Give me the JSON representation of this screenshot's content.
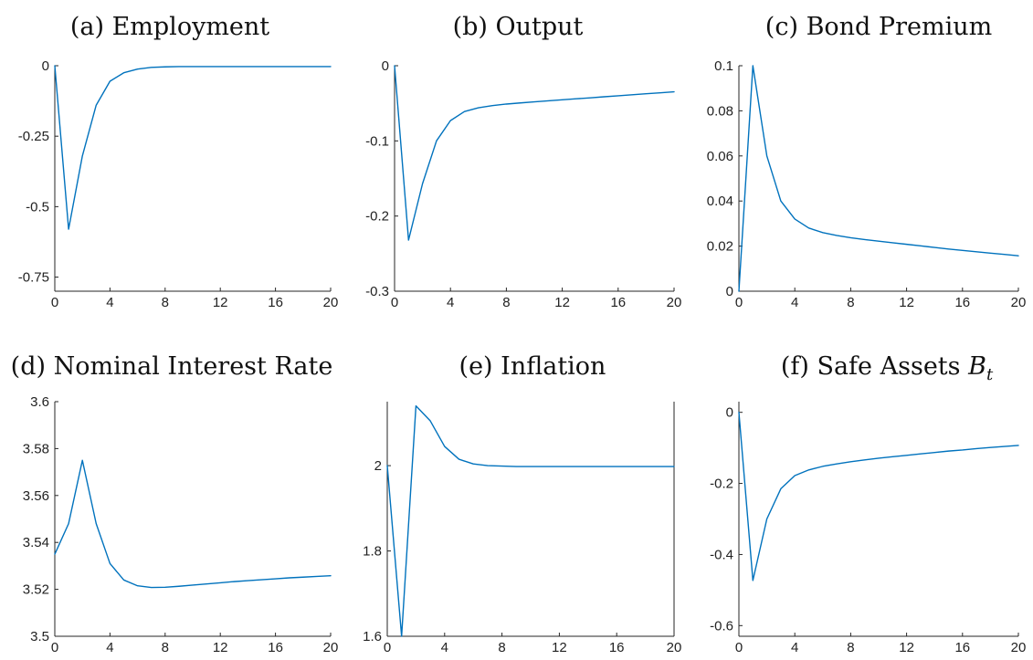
{
  "chart_data": [
    {
      "id": "employment",
      "type": "line",
      "title": "(a) Employment",
      "title_sub": "",
      "xlim": [
        0,
        20
      ],
      "ylim": [
        -0.8,
        0
      ],
      "x_ticks": [
        0,
        4,
        8,
        12,
        16,
        20
      ],
      "x_tick_labels": [
        "0",
        "4",
        "8",
        "12",
        "16",
        "20"
      ],
      "y_ticks": [
        -0.75,
        -0.5,
        -0.25,
        0
      ],
      "y_tick_labels": [
        "-0.75",
        "-0.5",
        "-0.25",
        "0"
      ],
      "box_right": false,
      "grid": false,
      "series": [
        {
          "color": "#0072BD",
          "x": [
            0,
            1,
            2,
            3,
            4,
            5,
            6,
            7,
            8,
            9,
            10,
            11,
            12,
            13,
            14,
            15,
            16,
            17,
            18,
            19,
            20
          ],
          "y": [
            0,
            -0.58,
            -0.32,
            -0.14,
            -0.055,
            -0.025,
            -0.012,
            -0.006,
            -0.004,
            -0.003,
            -0.003,
            -0.003,
            -0.003,
            -0.003,
            -0.003,
            -0.003,
            -0.003,
            -0.003,
            -0.003,
            -0.003,
            -0.003
          ]
        }
      ]
    },
    {
      "id": "output",
      "type": "line",
      "title": "(b) Output",
      "title_sub": "",
      "xlim": [
        0,
        20
      ],
      "ylim": [
        -0.3,
        0
      ],
      "x_ticks": [
        0,
        4,
        8,
        12,
        16,
        20
      ],
      "x_tick_labels": [
        "0",
        "4",
        "8",
        "12",
        "16",
        "20"
      ],
      "y_ticks": [
        -0.3,
        -0.2,
        -0.1,
        0
      ],
      "y_tick_labels": [
        "-0.3",
        "-0.2",
        "-0.1",
        "0"
      ],
      "box_right": false,
      "grid": false,
      "series": [
        {
          "color": "#0072BD",
          "x": [
            0,
            1,
            2,
            3,
            4,
            5,
            6,
            7,
            8,
            9,
            10,
            11,
            12,
            13,
            14,
            15,
            16,
            17,
            18,
            19,
            20
          ],
          "y": [
            0,
            -0.232,
            -0.157,
            -0.1,
            -0.073,
            -0.061,
            -0.056,
            -0.053,
            -0.051,
            -0.0495,
            -0.048,
            -0.0467,
            -0.0453,
            -0.044,
            -0.0427,
            -0.0413,
            -0.04,
            -0.0387,
            -0.0373,
            -0.036,
            -0.0347
          ]
        }
      ]
    },
    {
      "id": "bond-premium",
      "type": "line",
      "title": "(c) Bond Premium",
      "title_sub": "",
      "xlim": [
        0,
        20
      ],
      "ylim": [
        0,
        0.1
      ],
      "x_ticks": [
        0,
        4,
        8,
        12,
        16,
        20
      ],
      "x_tick_labels": [
        "0",
        "4",
        "8",
        "12",
        "16",
        "20"
      ],
      "y_ticks": [
        0,
        0.02,
        0.04,
        0.06,
        0.08,
        0.1
      ],
      "y_tick_labels": [
        "0",
        "0.02",
        "0.04",
        "0.06",
        "0.08",
        "0.1"
      ],
      "box_right": false,
      "grid": false,
      "series": [
        {
          "color": "#0072BD",
          "x": [
            0,
            1,
            2,
            3,
            4,
            5,
            6,
            7,
            8,
            9,
            10,
            11,
            12,
            13,
            14,
            15,
            16,
            17,
            18,
            19,
            20
          ],
          "y": [
            0,
            0.1,
            0.06,
            0.04,
            0.032,
            0.028,
            0.026,
            0.0247,
            0.0237,
            0.0229,
            0.0222,
            0.0215,
            0.0208,
            0.0201,
            0.0194,
            0.0187,
            0.0181,
            0.0175,
            0.0169,
            0.0163,
            0.0157
          ]
        }
      ]
    },
    {
      "id": "nominal-interest-rate",
      "type": "line",
      "title": "(d) Nominal Interest Rate",
      "title_sub": "",
      "xlim": [
        0,
        20
      ],
      "ylim": [
        3.5,
        3.6
      ],
      "x_ticks": [
        0,
        4,
        8,
        12,
        16,
        20
      ],
      "x_tick_labels": [
        "0",
        "4",
        "8",
        "12",
        "16",
        "20"
      ],
      "y_ticks": [
        3.5,
        3.52,
        3.54,
        3.56,
        3.58,
        3.6
      ],
      "y_tick_labels": [
        "3.5",
        "3.52",
        "3.54",
        "3.56",
        "3.58",
        "3.6"
      ],
      "box_right": false,
      "grid": false,
      "series": [
        {
          "color": "#0072BD",
          "x": [
            0,
            1,
            2,
            3,
            4,
            5,
            6,
            7,
            8,
            9,
            10,
            11,
            12,
            13,
            14,
            15,
            16,
            17,
            18,
            19,
            20
          ],
          "y": [
            3.535,
            3.548,
            3.575,
            3.548,
            3.531,
            3.524,
            3.5215,
            3.5208,
            3.5209,
            3.5213,
            3.5218,
            3.5223,
            3.5228,
            3.5233,
            3.5237,
            3.5241,
            3.5245,
            3.5249,
            3.5252,
            3.5255,
            3.5258
          ]
        }
      ]
    },
    {
      "id": "inflation",
      "type": "line",
      "title": "(e) Inflation",
      "title_sub": "",
      "xlim": [
        0,
        20
      ],
      "ylim": [
        1.6,
        2.15
      ],
      "x_ticks": [
        0,
        4,
        8,
        12,
        16,
        20
      ],
      "x_tick_labels": [
        "0",
        "4",
        "8",
        "12",
        "16",
        "20"
      ],
      "y_ticks": [
        1.6,
        1.8,
        2
      ],
      "y_tick_labels": [
        "1.6",
        "1.8",
        "2"
      ],
      "box_right": true,
      "grid": false,
      "series": [
        {
          "color": "#0072BD",
          "x": [
            0,
            1,
            2,
            3,
            4,
            5,
            6,
            7,
            8,
            9,
            10,
            11,
            12,
            13,
            14,
            15,
            16,
            17,
            18,
            19,
            20
          ],
          "y": [
            2.0,
            1.6,
            2.14,
            2.105,
            2.045,
            2.015,
            2.004,
            2.0,
            1.999,
            1.998,
            1.998,
            1.998,
            1.998,
            1.998,
            1.998,
            1.998,
            1.998,
            1.998,
            1.998,
            1.998,
            1.998
          ]
        }
      ]
    },
    {
      "id": "safe-assets",
      "type": "line",
      "title": "(f) Safe Assets ",
      "title_sub": "",
      "title_math_base": "B",
      "title_math_sub": "t",
      "xlim": [
        0,
        20
      ],
      "ylim": [
        -0.63,
        0.03
      ],
      "x_ticks": [
        0,
        4,
        8,
        12,
        16,
        20
      ],
      "x_tick_labels": [
        "0",
        "4",
        "8",
        "12",
        "16",
        "20"
      ],
      "y_ticks": [
        -0.6,
        -0.4,
        -0.2,
        0
      ],
      "y_tick_labels": [
        "-0.6",
        "-0.4",
        "-0.2",
        "0"
      ],
      "box_right": false,
      "grid": false,
      "series": [
        {
          "color": "#0072BD",
          "x": [
            0,
            1,
            2,
            3,
            4,
            5,
            6,
            7,
            8,
            9,
            10,
            11,
            12,
            13,
            14,
            15,
            16,
            17,
            18,
            19,
            20
          ],
          "y": [
            0,
            -0.473,
            -0.3,
            -0.215,
            -0.178,
            -0.162,
            -0.152,
            -0.145,
            -0.139,
            -0.134,
            -0.129,
            -0.125,
            -0.121,
            -0.117,
            -0.113,
            -0.109,
            -0.106,
            -0.102,
            -0.099,
            -0.096,
            -0.093
          ]
        }
      ]
    }
  ]
}
